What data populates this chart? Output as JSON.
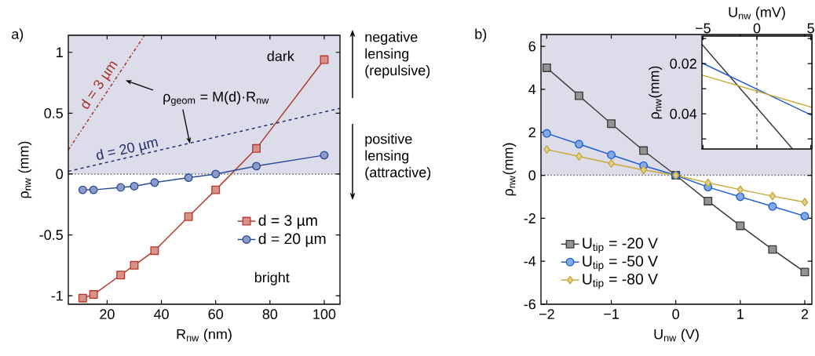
{
  "chart_data": [
    {
      "type": "line",
      "title": "a)",
      "xlabel": "R$_{nw}$ (nm)",
      "ylabel": "ρ$_{nw}$ (mm)",
      "xlim": [
        5.7,
        105.8
      ],
      "ylim": [
        -1.07,
        1.14
      ],
      "xticks": [
        20,
        40,
        60,
        80,
        100
      ],
      "yticks": [
        -1,
        -0.5,
        0,
        0.5,
        1
      ],
      "x": [
        11,
        15,
        25,
        30,
        37.5,
        50,
        60,
        75,
        100
      ],
      "series": [
        {
          "name": "d = 3 µm",
          "color": "#b5382c",
          "marker": "square",
          "values": [
            -1.02,
            -0.99,
            -0.83,
            -0.75,
            -0.63,
            -0.35,
            -0.13,
            0.21,
            0.94
          ]
        },
        {
          "name": "d = 20 µm",
          "color": "#2a4a9a",
          "marker": "circle",
          "values": [
            -0.13,
            -0.13,
            -0.11,
            -0.1,
            -0.07,
            -0.03,
            0.0,
            0.065,
            0.155
          ]
        },
        {
          "color": "#a83228",
          "line_style": "dashdot",
          "x": [
            5.7,
            33.8
          ],
          "values": [
            0.198,
            1.14
          ]
        },
        {
          "color": "#1f2f6e",
          "line_style": "dashed",
          "x": [
            5.7,
            105.8
          ],
          "values": [
            0.022,
            0.54
          ]
        }
      ],
      "bands": [
        {
          "axis": "y",
          "from": 0,
          "to": 1.14,
          "color": "#dcdcea"
        }
      ],
      "ref_lines": [
        {
          "axis": "y",
          "value": 0,
          "color": "#606060",
          "line_style": "dotted"
        }
      ],
      "legend": "bottom right",
      "annotations": [
        "dark",
        "bright",
        {
          "text": "ρ$_{geom}$ = M(d)·R$_{nw}$",
          "x": 50.5,
          "y": 0.25
        },
        "negative lensing (repulsive)",
        "positive lensing (attractive)",
        "d = 3 µm",
        "d = 20 µm"
      ]
    },
    {
      "type": "line",
      "title": "b)",
      "xlabel": "U$_{nw}$ (V)",
      "ylabel": "ρ$_{nw}$(mm)",
      "xlim": [
        -2.09,
        2.11
      ],
      "ylim": [
        -6,
        6.55
      ],
      "xticks": [
        {
          "value": -2,
          "label": "−2"
        },
        {
          "value": -1,
          "label": "−1"
        },
        0,
        1,
        2
      ],
      "yticks": [
        -6,
        -4,
        -2,
        0,
        2,
        4,
        6
      ],
      "x": [
        -2,
        -1.5,
        -1,
        -0.5,
        0,
        0.5,
        1,
        1.5,
        2
      ],
      "series": [
        {
          "name": "U$_{tip}$ = -20 V",
          "color": "#3a3a3a",
          "marker": "square",
          "values": [
            5.0,
            3.7,
            2.4,
            1.15,
            0,
            -1.2,
            -2.35,
            -3.45,
            -4.5
          ]
        },
        {
          "name": "U$_{tip}$ = -50 V",
          "color": "#1f5fd0",
          "marker": "circle",
          "values": [
            1.95,
            1.45,
            0.95,
            0.45,
            0,
            -0.55,
            -1.0,
            -1.45,
            -1.9
          ]
        },
        {
          "name": "U$_{tip}$ = -80 V",
          "color": "#c8a832",
          "marker": "diamond",
          "values": [
            1.2,
            0.88,
            0.55,
            0.25,
            0,
            -0.35,
            -0.67,
            -0.97,
            -1.25
          ]
        }
      ],
      "bands": [
        {
          "axis": "y",
          "from": 0,
          "to": 6.55,
          "color": "#dcdcea"
        }
      ],
      "ref_lines": [
        {
          "axis": "y",
          "value": 0,
          "color": "#606060",
          "line_style": "dotted"
        }
      ],
      "legend": "bottom left"
    },
    {
      "type": "line",
      "xlabel": "U$_{nw}$ (mV)",
      "ylabel": "ρ$_{nw}$(mm)",
      "xlim": [
        -5.1,
        5.1
      ],
      "ylim": [
        0.054,
        0.009
      ],
      "xticks": [
        {
          "value": -5,
          "label": "−5"
        },
        0,
        5
      ],
      "yticks": [
        {
          "value": 0.01,
          "label": null
        },
        0.02,
        {
          "value": 0.03,
          "label": null
        },
        0.04,
        {
          "value": 0.05,
          "label": null
        }
      ],
      "series": [
        {
          "color": "#3a3a3a",
          "x": [
            -5.1,
            3.3
          ],
          "values": [
            0.0123,
            0.0539
          ]
        },
        {
          "color": "#1f5fd0",
          "x": [
            -5.1,
            5.1
          ],
          "values": [
            0.0197,
            0.0406
          ]
        },
        {
          "color": "#c8a832",
          "x": [
            -5.1,
            5.1
          ],
          "values": [
            0.0245,
            0.0374
          ]
        }
      ],
      "ref_lines": [
        {
          "axis": "x",
          "value": 0,
          "color": "#707070",
          "line_style": "dashdot"
        }
      ]
    }
  ]
}
